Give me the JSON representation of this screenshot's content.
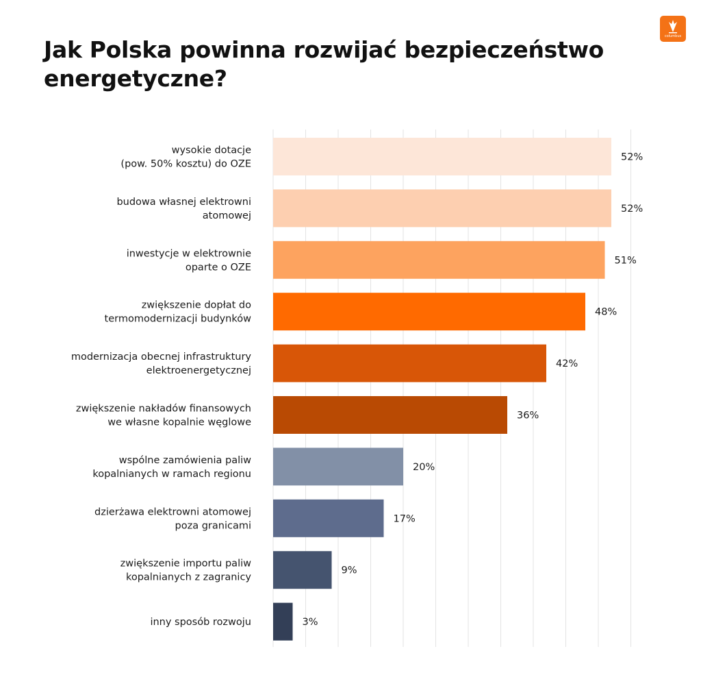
{
  "title_lines": [
    "Jak Polska powinna rozwijać bezpieczeństwo",
    "energetyczne?"
  ],
  "logo": {
    "text": "columbus",
    "color": "#f47216"
  },
  "chart_data": {
    "type": "bar",
    "orientation": "horizontal",
    "title": "Jak Polska powinna rozwijać bezpieczeństwo energetyczne?",
    "xlim": [
      0,
      55
    ],
    "grid": true,
    "categories": [
      [
        "wysokie dotacje",
        "(pow. 50% kosztu) do OZE"
      ],
      [
        "budowa własnej elektrowni",
        "atomowej"
      ],
      [
        "inwestycje w elektrownie",
        "oparte  o OZE"
      ],
      [
        "zwiększenie dopłat do",
        "termomodernizacji budynków"
      ],
      [
        "modernizacja obecnej infrastruktury",
        "elektroenergetycznej"
      ],
      [
        "zwiększenie nakładów finansowych",
        "we własne kopalnie węglowe"
      ],
      [
        "wspólne zamówienia paliw",
        "kopalnianych w ramach regionu"
      ],
      [
        "dzierżawa elektrowni atomowej",
        "poza granicami"
      ],
      [
        "zwiększenie importu paliw",
        "kopalnianych z zagranicy"
      ],
      [
        "inny sposób rozwoju"
      ]
    ],
    "values": [
      52,
      52,
      51,
      48,
      42,
      36,
      20,
      17,
      9,
      3
    ],
    "value_labels": [
      "52%",
      "52%",
      "51%",
      "48%",
      "42%",
      "36%",
      "20%",
      "17%",
      "9%",
      "3%"
    ],
    "colors": [
      "#fde6d8",
      "#fdcfb0",
      "#fda35f",
      "#ff6a00",
      "#d85607",
      "#b94a03",
      "#8290a7",
      "#5e6c8d",
      "#45546f",
      "#333f57"
    ]
  }
}
